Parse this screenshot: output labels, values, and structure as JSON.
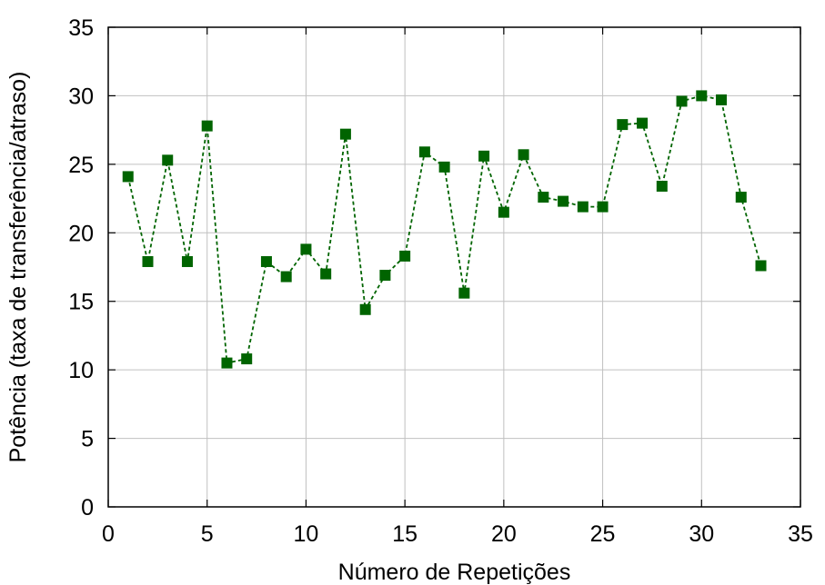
{
  "chart_data": {
    "type": "line",
    "title": "",
    "xlabel": "Número de Repetições",
    "ylabel": "Potência (taxa de transferência/atraso)",
    "xlim": [
      0,
      35
    ],
    "ylim": [
      0,
      35
    ],
    "xticks": [
      0,
      5,
      10,
      15,
      20,
      25,
      30,
      35
    ],
    "yticks": [
      0,
      5,
      10,
      15,
      20,
      25,
      30,
      35
    ],
    "grid": true,
    "legend": "none",
    "series": [
      {
        "color": "#006400",
        "marker": "square",
        "line_style": "dashed",
        "x": [
          1,
          2,
          3,
          4,
          5,
          6,
          7,
          8,
          9,
          10,
          11,
          12,
          13,
          14,
          15,
          16,
          17,
          18,
          19,
          20,
          21,
          22,
          23,
          24,
          25,
          26,
          27,
          28,
          29,
          30,
          31,
          32,
          33
        ],
        "y": [
          24.1,
          17.9,
          25.3,
          17.9,
          27.8,
          10.5,
          10.8,
          17.9,
          16.8,
          18.8,
          17.0,
          27.2,
          14.4,
          16.9,
          18.3,
          25.9,
          24.8,
          15.6,
          25.6,
          21.5,
          25.7,
          22.6,
          22.3,
          21.9,
          21.9,
          27.9,
          28.0,
          23.4,
          29.6,
          30.0,
          29.7,
          22.6,
          17.6
        ]
      }
    ]
  }
}
